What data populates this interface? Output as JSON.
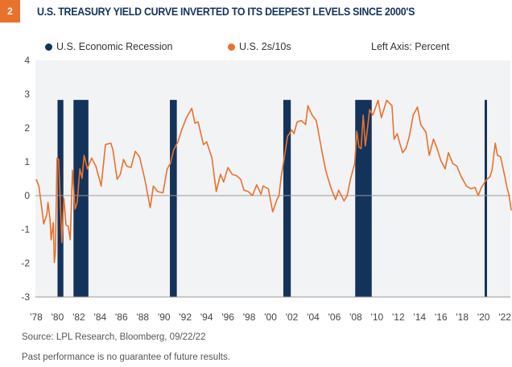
{
  "badge": "2",
  "title": "U.S. TREASURY YIELD CURVE INVERTED TO ITS DEEPEST LEVELS SINCE 2000'S",
  "axis_note": "Left Axis: Percent",
  "source": "Source:  LPL Research, Bloomberg,  09/22/22",
  "disclaimer": "Past performance is no guarantee of future results.",
  "colors": {
    "recession": "#14335a",
    "line": "#e8722c",
    "badge": "#e8722c",
    "plot_bg": "#f2f3f5"
  },
  "chart_data": {
    "type": "line",
    "ylim": [
      -3,
      4
    ],
    "yticks": [
      4,
      3,
      2,
      1,
      0,
      -1,
      -2,
      -3
    ],
    "xlim": [
      1978,
      2022.6
    ],
    "xticks": [
      {
        "v": 1978,
        "l": "'78"
      },
      {
        "v": 1980,
        "l": "'80"
      },
      {
        "v": 1982,
        "l": "'82"
      },
      {
        "v": 1984,
        "l": "'84"
      },
      {
        "v": 1986,
        "l": "'86"
      },
      {
        "v": 1988,
        "l": "'88"
      },
      {
        "v": 1990,
        "l": "'90"
      },
      {
        "v": 1992,
        "l": "'92"
      },
      {
        "v": 1994,
        "l": "'94"
      },
      {
        "v": 1996,
        "l": "'96"
      },
      {
        "v": 1998,
        "l": "'98"
      },
      {
        "v": 2000,
        "l": "'00"
      },
      {
        "v": 2002,
        "l": "'02"
      },
      {
        "v": 2004,
        "l": "'04"
      },
      {
        "v": 2006,
        "l": "'06"
      },
      {
        "v": 2008,
        "l": "'08"
      },
      {
        "v": 2010,
        "l": "'10"
      },
      {
        "v": 2012,
        "l": "'12"
      },
      {
        "v": 2014,
        "l": "'14"
      },
      {
        "v": 2016,
        "l": "'16"
      },
      {
        "v": 2018,
        "l": "'18"
      },
      {
        "v": 2020,
        "l": "'20"
      },
      {
        "v": 2022,
        "l": "'22"
      }
    ],
    "grid": false,
    "legend_position": "top",
    "recession_series": {
      "name": "U.S. Economic Recession",
      "bar_height": 2.83,
      "periods": [
        [
          1980.0,
          1980.55
        ],
        [
          1981.5,
          1982.9
        ],
        [
          1990.55,
          1991.2
        ],
        [
          2001.2,
          2001.9
        ],
        [
          2007.95,
          2009.5
        ],
        [
          2020.1,
          2020.3
        ]
      ]
    },
    "series": [
      {
        "name": "U.S. 2s/10s",
        "points": [
          [
            1978.0,
            0.48
          ],
          [
            1978.25,
            0.28
          ],
          [
            1978.5,
            -0.32
          ],
          [
            1978.7,
            -0.84
          ],
          [
            1979.0,
            -0.55
          ],
          [
            1979.1,
            -0.2
          ],
          [
            1979.3,
            -0.72
          ],
          [
            1979.4,
            -1.31
          ],
          [
            1979.6,
            -0.8
          ],
          [
            1979.7,
            -1.98
          ],
          [
            1979.8,
            -1.67
          ],
          [
            1979.95,
            1.11
          ],
          [
            1980.1,
            1.07
          ],
          [
            1980.2,
            0.32
          ],
          [
            1980.4,
            -1.39
          ],
          [
            1980.6,
            -0.08
          ],
          [
            1980.8,
            -0.87
          ],
          [
            1981.0,
            -0.91
          ],
          [
            1981.2,
            -1.31
          ],
          [
            1981.4,
            0.75
          ],
          [
            1981.65,
            -0.4
          ],
          [
            1981.85,
            -0.2
          ],
          [
            1982.1,
            0.79
          ],
          [
            1982.3,
            0.51
          ],
          [
            1982.5,
            1.19
          ],
          [
            1982.8,
            0.79
          ],
          [
            1983.2,
            1.11
          ],
          [
            1983.6,
            0.87
          ],
          [
            1984.1,
            0.28
          ],
          [
            1984.5,
            1.51
          ],
          [
            1985.0,
            1.55
          ],
          [
            1985.2,
            1.35
          ],
          [
            1985.6,
            0.48
          ],
          [
            1985.9,
            0.63
          ],
          [
            1986.2,
            1.07
          ],
          [
            1986.5,
            0.87
          ],
          [
            1986.9,
            0.83
          ],
          [
            1987.3,
            1.31
          ],
          [
            1987.7,
            1.15
          ],
          [
            1988.2,
            0.48
          ],
          [
            1988.7,
            -0.36
          ],
          [
            1989.0,
            0.28
          ],
          [
            1989.4,
            0.12
          ],
          [
            1989.9,
            0.08
          ],
          [
            1990.3,
            0.79
          ],
          [
            1990.6,
            0.95
          ],
          [
            1990.9,
            1.35
          ],
          [
            1991.3,
            1.59
          ],
          [
            1991.7,
            1.98
          ],
          [
            1992.1,
            2.3
          ],
          [
            1992.6,
            2.58
          ],
          [
            1992.9,
            2.14
          ],
          [
            1993.2,
            2.18
          ],
          [
            1993.7,
            1.51
          ],
          [
            1994.0,
            1.59
          ],
          [
            1994.5,
            1.11
          ],
          [
            1994.9,
            0.12
          ],
          [
            1995.3,
            0.63
          ],
          [
            1995.6,
            0.4
          ],
          [
            1996.0,
            0.83
          ],
          [
            1996.4,
            0.63
          ],
          [
            1996.8,
            0.59
          ],
          [
            1997.2,
            0.48
          ],
          [
            1997.5,
            0.16
          ],
          [
            1997.9,
            0.12
          ],
          [
            1998.3,
            0.0
          ],
          [
            1998.7,
            0.32
          ],
          [
            1999.1,
            0.04
          ],
          [
            1999.3,
            0.28
          ],
          [
            1999.8,
            0.2
          ],
          [
            2000.2,
            -0.48
          ],
          [
            2000.6,
            -0.12
          ],
          [
            2000.8,
            0.0
          ],
          [
            2001.0,
            0.56
          ],
          [
            2001.3,
            1.15
          ],
          [
            2001.6,
            1.75
          ],
          [
            2002.0,
            1.94
          ],
          [
            2002.2,
            1.83
          ],
          [
            2002.5,
            2.18
          ],
          [
            2002.9,
            2.22
          ],
          [
            2003.3,
            2.1
          ],
          [
            2003.5,
            2.66
          ],
          [
            2003.9,
            2.38
          ],
          [
            2004.3,
            2.22
          ],
          [
            2004.8,
            1.35
          ],
          [
            2005.2,
            0.71
          ],
          [
            2005.7,
            0.2
          ],
          [
            2006.1,
            -0.12
          ],
          [
            2006.4,
            0.16
          ],
          [
            2006.9,
            -0.16
          ],
          [
            2007.2,
            0.0
          ],
          [
            2007.5,
            0.48
          ],
          [
            2007.9,
            0.95
          ],
          [
            2008.1,
            1.9
          ],
          [
            2008.3,
            1.43
          ],
          [
            2008.5,
            1.39
          ],
          [
            2008.7,
            2.38
          ],
          [
            2008.9,
            1.47
          ],
          [
            2009.1,
            1.98
          ],
          [
            2009.3,
            2.54
          ],
          [
            2009.6,
            2.38
          ],
          [
            2010.1,
            2.82
          ],
          [
            2010.4,
            2.3
          ],
          [
            2010.9,
            2.82
          ],
          [
            2011.4,
            2.66
          ],
          [
            2011.6,
            1.67
          ],
          [
            2011.9,
            1.83
          ],
          [
            2012.1,
            1.59
          ],
          [
            2012.4,
            1.27
          ],
          [
            2012.7,
            1.39
          ],
          [
            2013.0,
            1.71
          ],
          [
            2013.4,
            2.38
          ],
          [
            2013.8,
            2.62
          ],
          [
            2014.1,
            2.1
          ],
          [
            2014.6,
            1.87
          ],
          [
            2014.9,
            1.19
          ],
          [
            2015.3,
            1.67
          ],
          [
            2015.6,
            1.43
          ],
          [
            2016.0,
            1.03
          ],
          [
            2016.4,
            0.79
          ],
          [
            2016.7,
            1.27
          ],
          [
            2017.1,
            0.95
          ],
          [
            2017.5,
            0.87
          ],
          [
            2017.9,
            0.56
          ],
          [
            2018.4,
            0.28
          ],
          [
            2018.8,
            0.2
          ],
          [
            2019.2,
            0.24
          ],
          [
            2019.5,
            0.0
          ],
          [
            2019.8,
            0.24
          ],
          [
            2020.2,
            0.44
          ],
          [
            2020.6,
            0.56
          ],
          [
            2020.8,
            0.75
          ],
          [
            2021.1,
            1.55
          ],
          [
            2021.3,
            1.19
          ],
          [
            2021.6,
            1.15
          ],
          [
            2022.0,
            0.56
          ],
          [
            2022.2,
            0.24
          ],
          [
            2022.4,
            0.0
          ],
          [
            2022.6,
            -0.44
          ]
        ]
      }
    ]
  }
}
